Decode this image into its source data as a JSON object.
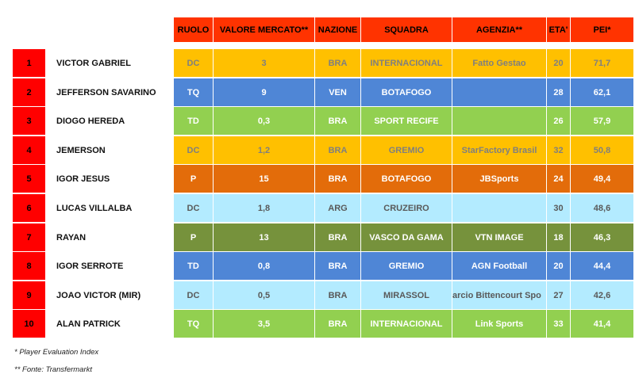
{
  "headers": {
    "ruolo": "RUOLO",
    "valore": "VALORE MERCATO**",
    "nazione": "NAZIONE",
    "squadra": "SQUADRA",
    "agenzia": "AGENZIA**",
    "eta": "ETA'",
    "pei": "PEI*"
  },
  "colors": {
    "header": "#ff3300",
    "rank": "#ff0000",
    "yellow": "#ffc000",
    "blue": "#4f86d6",
    "green": "#92d050",
    "orange": "#e36c0a",
    "lightblue": "#b3ebff",
    "olive": "#76923c"
  },
  "players": [
    {
      "rank": "1",
      "name": "VICTOR GABRIEL",
      "ruolo": "DC",
      "valore": "3",
      "nazione": "BRA",
      "squadra": "INTERNACIONAL",
      "agenzia": "Fatto Gestao",
      "eta": "20",
      "pei": "71,7",
      "bg": "#ffc000",
      "fg": "#7f7f7f"
    },
    {
      "rank": "2",
      "name": "JEFFERSON SAVARINO",
      "ruolo": "TQ",
      "valore": "9",
      "nazione": "VEN",
      "squadra": "BOTAFOGO",
      "agenzia": "",
      "eta": "28",
      "pei": "62,1",
      "bg": "#4f86d6",
      "fg": "#ffffff"
    },
    {
      "rank": "3",
      "name": "DIOGO HEREDA",
      "ruolo": "TD",
      "valore": "0,3",
      "nazione": "BRA",
      "squadra": "SPORT RECIFE",
      "agenzia": "",
      "eta": "26",
      "pei": "57,9",
      "bg": "#92d050",
      "fg": "#ffffff"
    },
    {
      "rank": "4",
      "name": "JEMERSON",
      "ruolo": "DC",
      "valore": "1,2",
      "nazione": "BRA",
      "squadra": "GREMIO",
      "agenzia": "StarFactory Brasil",
      "eta": "32",
      "pei": "50,8",
      "bg": "#ffc000",
      "fg": "#7f7f7f"
    },
    {
      "rank": "5",
      "name": "IGOR JESUS",
      "ruolo": "P",
      "valore": "15",
      "nazione": "BRA",
      "squadra": "BOTAFOGO",
      "agenzia": "JBSports",
      "eta": "24",
      "pei": "49,4",
      "bg": "#e36c0a",
      "fg": "#ffffff"
    },
    {
      "rank": "6",
      "name": "LUCAS VILLALBA",
      "ruolo": "DC",
      "valore": "1,8",
      "nazione": "ARG",
      "squadra": "CRUZEIRO",
      "agenzia": "",
      "eta": "30",
      "pei": "48,6",
      "bg": "#b3ebff",
      "fg": "#595959"
    },
    {
      "rank": "7",
      "name": "RAYAN",
      "ruolo": "P",
      "valore": "13",
      "nazione": "BRA",
      "squadra": "VASCO DA GAMA",
      "agenzia": "VTN IMAGE",
      "eta": "18",
      "pei": "46,3",
      "bg": "#76923c",
      "fg": "#ffffff"
    },
    {
      "rank": "8",
      "name": "IGOR SERROTE",
      "ruolo": "TD",
      "valore": "0,8",
      "nazione": "BRA",
      "squadra": "GREMIO",
      "agenzia": "AGN Football",
      "eta": "20",
      "pei": "44,4",
      "bg": "#4f86d6",
      "fg": "#ffffff"
    },
    {
      "rank": "9",
      "name": "JOAO VICTOR (MIR)",
      "ruolo": "DC",
      "valore": "0,5",
      "nazione": "BRA",
      "squadra": "MIRASSOL",
      "agenzia": "arcio Bittencourt Spo",
      "eta": "27",
      "pei": "42,6",
      "bg": "#b3ebff",
      "fg": "#595959"
    },
    {
      "rank": "10",
      "name": "ALAN PATRICK",
      "ruolo": "TQ",
      "valore": "3,5",
      "nazione": "BRA",
      "squadra": "INTERNACIONAL",
      "agenzia": "Link Sports",
      "eta": "33",
      "pei": "41,4",
      "bg": "#92d050",
      "fg": "#ffffff"
    }
  ],
  "notes": {
    "pei_note": "* Player Evaluation Index",
    "source_note": "** Fonte: Transfermarkt"
  }
}
